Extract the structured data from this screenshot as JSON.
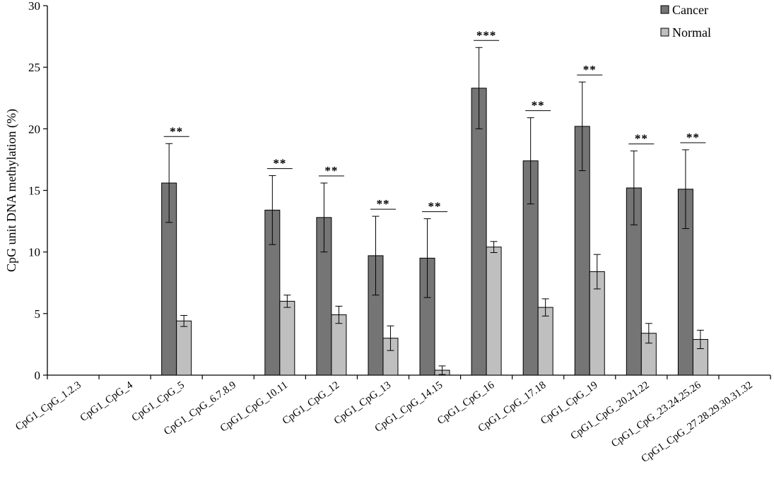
{
  "chart_data": {
    "type": "bar",
    "title": "",
    "xlabel": "",
    "ylabel": "CpG unit DNA methylation  (%)",
    "ylim": [
      0,
      30
    ],
    "yticks": [
      0,
      5,
      10,
      15,
      20,
      25,
      30
    ],
    "grid": false,
    "legend": "top-right",
    "categories": [
      "CpG1_CpG_1.2.3",
      "CpG1_CpG_4",
      "CpG1_CpG_5",
      "CpG1_CpG_6.7.8.9",
      "CpG1_CpG_10.11",
      "CpG1_CpG_12",
      "CpG1_CpG_13",
      "CpG1_CpG_14.15",
      "CpG1_CpG_16",
      "CpG1_CpG_17.18",
      "CpG1_CpG_19",
      "CpG1_CpG_20.21.22",
      "CpG1_CpG_23.24.25.26",
      "CpG1_CpG_27.28.29.30.31.32"
    ],
    "series": [
      {
        "name": "Cancer",
        "color": "#757575",
        "values": [
          null,
          null,
          15.6,
          null,
          13.4,
          12.8,
          9.7,
          9.5,
          23.3,
          17.4,
          20.2,
          15.2,
          15.1,
          null
        ],
        "errors": [
          null,
          null,
          3.2,
          null,
          2.8,
          2.8,
          3.2,
          3.2,
          3.3,
          3.5,
          3.6,
          3.0,
          3.2,
          null
        ]
      },
      {
        "name": "Normal",
        "color": "#bfbfbf",
        "values": [
          null,
          null,
          4.4,
          null,
          6.0,
          4.9,
          3.0,
          0.4,
          10.4,
          5.5,
          8.4,
          3.4,
          2.9,
          null
        ],
        "errors": [
          null,
          null,
          0.45,
          null,
          0.5,
          0.7,
          1.0,
          0.35,
          0.45,
          0.7,
          1.4,
          0.8,
          0.75,
          null
        ]
      }
    ],
    "significance": [
      "",
      "",
      "**",
      "",
      "**",
      "**",
      "**",
      "**",
      "***",
      "**",
      "**",
      "**",
      "**",
      ""
    ]
  }
}
